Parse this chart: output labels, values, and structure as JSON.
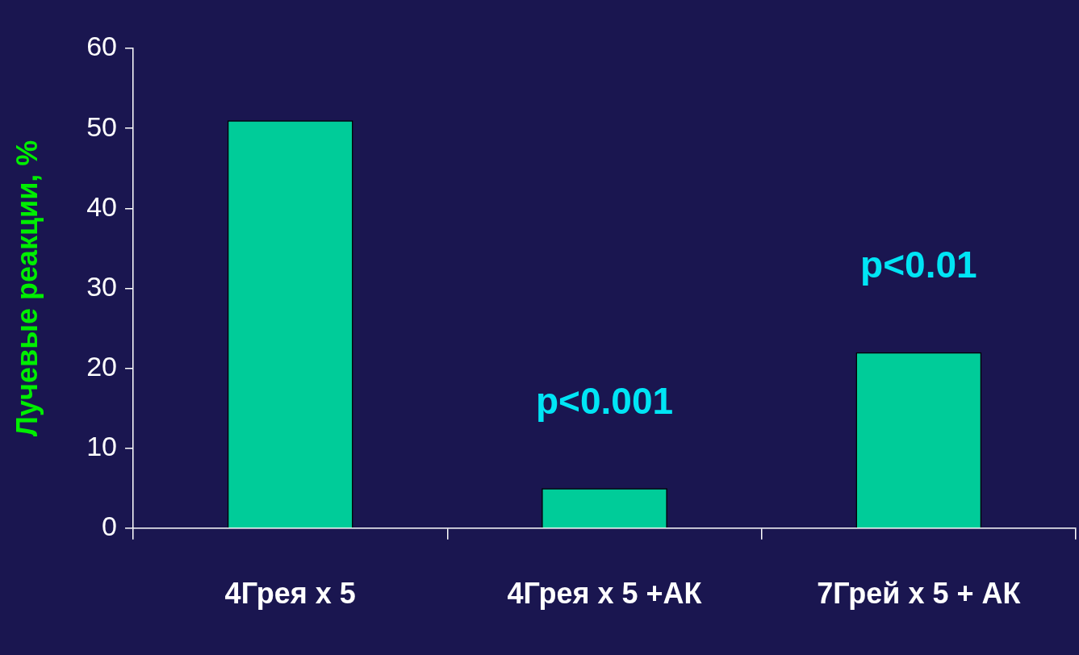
{
  "chart_data": {
    "type": "bar",
    "ylabel": "Лучевые реакции, %",
    "categories": [
      "4Грея х 5",
      "4Грея х 5 +АК",
      "7Грей х 5 + АК"
    ],
    "values": [
      51,
      5,
      22
    ],
    "color": "#00cc99",
    "ylim": [
      0,
      60
    ],
    "yticks": [
      0,
      10,
      20,
      30,
      40,
      50,
      60
    ],
    "grid": false,
    "legend": false,
    "annotations": [
      "p<0.001",
      "p<0.01"
    ]
  }
}
